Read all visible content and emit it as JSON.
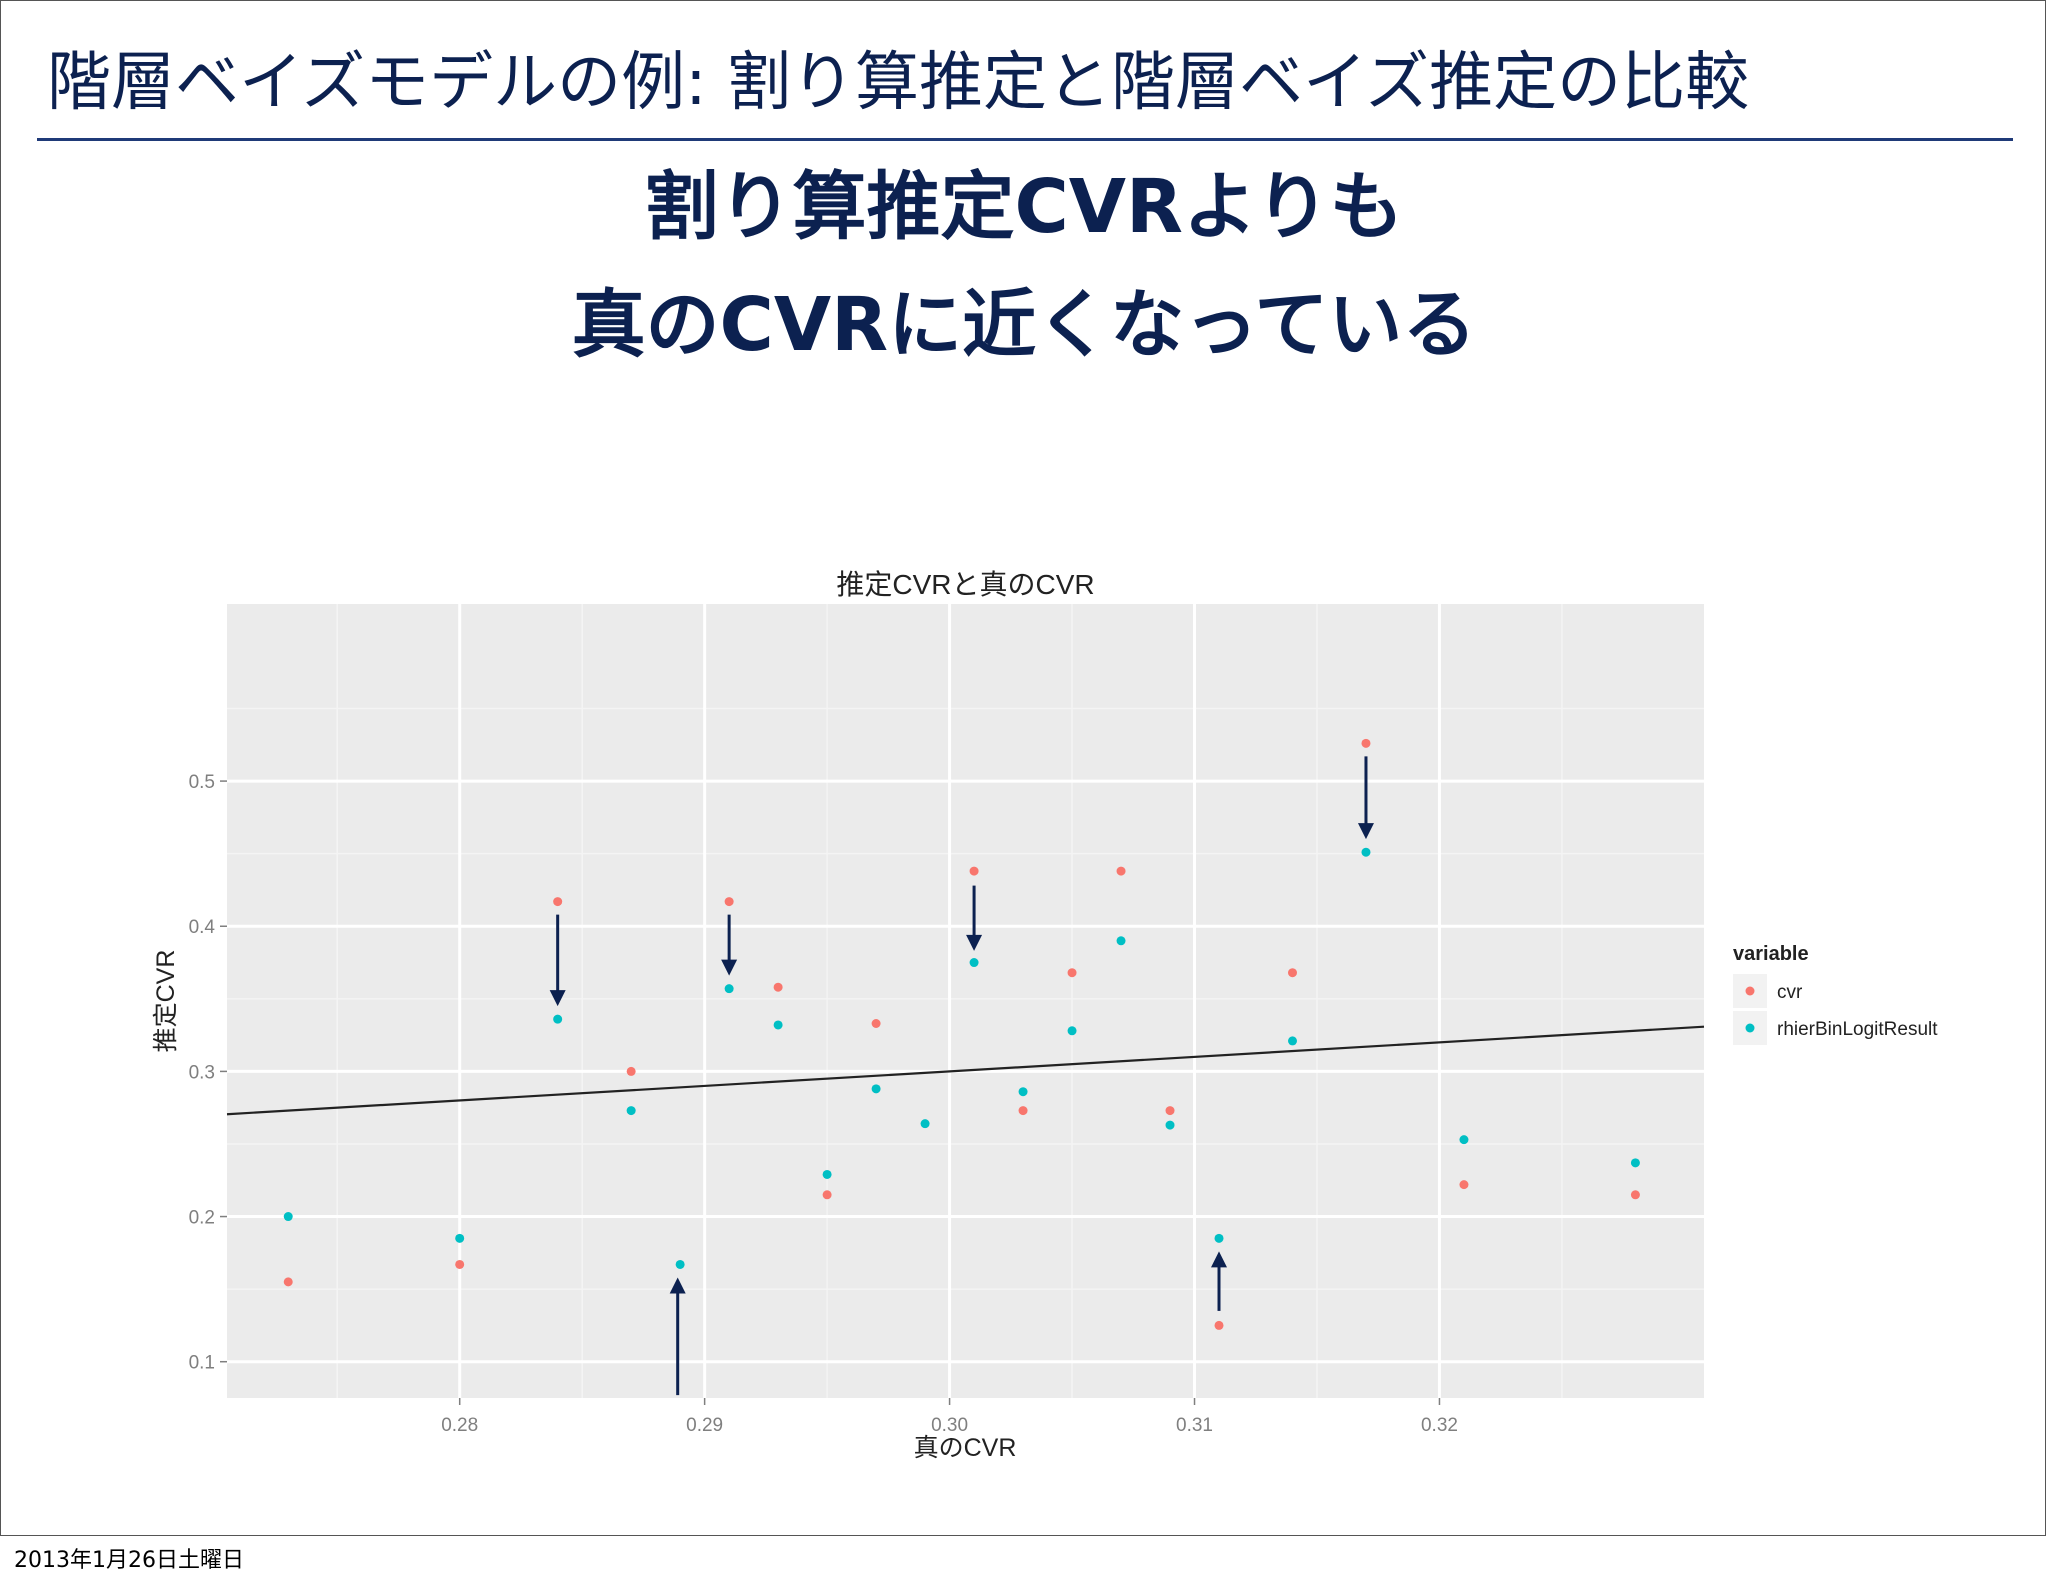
{
  "slide": {
    "title": "階層ベイズモデルの例: 割り算推定と階層ベイズ推定の比較",
    "headline_line1": "割り算推定CVRよりも",
    "headline_line2": "真のCVRに近くなっている",
    "footer_date": "2013年1月26日土曜日"
  },
  "chart_data": {
    "type": "scatter",
    "title": "推定CVRと真のCVR",
    "xlabel": "真のCVR",
    "ylabel": "推定CVR",
    "xlim": [
      0.2705,
      0.3308
    ],
    "ylim": [
      0.075,
      0.622
    ],
    "xticks": [
      0.28,
      0.29,
      0.3,
      0.31,
      0.32
    ],
    "xtick_labels": [
      "0.28",
      "0.29",
      "0.30",
      "0.31",
      "0.32"
    ],
    "yticks": [
      0.1,
      0.2,
      0.3,
      0.4,
      0.5
    ],
    "ytick_labels": [
      "0.1",
      "0.2",
      "0.3",
      "0.4",
      "0.5"
    ],
    "grid": true,
    "legend": {
      "title": "variable",
      "position": "right"
    },
    "series": [
      {
        "name": "cvr",
        "color": "#f8766d",
        "points": [
          [
            0.273,
            0.155
          ],
          [
            0.28,
            0.167
          ],
          [
            0.284,
            0.417
          ],
          [
            0.287,
            0.3
          ],
          [
            0.291,
            0.417
          ],
          [
            0.293,
            0.358
          ],
          [
            0.295,
            0.215
          ],
          [
            0.297,
            0.333
          ],
          [
            0.301,
            0.438
          ],
          [
            0.303,
            0.273
          ],
          [
            0.305,
            0.368
          ],
          [
            0.307,
            0.438
          ],
          [
            0.309,
            0.273
          ],
          [
            0.311,
            0.125
          ],
          [
            0.314,
            0.368
          ],
          [
            0.317,
            0.526
          ],
          [
            0.321,
            0.222
          ],
          [
            0.328,
            0.215
          ]
        ]
      },
      {
        "name": "rhierBinLogitResult",
        "color": "#00bfc4",
        "points": [
          [
            0.273,
            0.2
          ],
          [
            0.28,
            0.185
          ],
          [
            0.284,
            0.336
          ],
          [
            0.287,
            0.273
          ],
          [
            0.289,
            0.167
          ],
          [
            0.291,
            0.357
          ],
          [
            0.293,
            0.332
          ],
          [
            0.295,
            0.229
          ],
          [
            0.297,
            0.288
          ],
          [
            0.299,
            0.264
          ],
          [
            0.301,
            0.375
          ],
          [
            0.303,
            0.286
          ],
          [
            0.305,
            0.328
          ],
          [
            0.307,
            0.39
          ],
          [
            0.309,
            0.263
          ],
          [
            0.311,
            0.185
          ],
          [
            0.314,
            0.321
          ],
          [
            0.317,
            0.451
          ],
          [
            0.321,
            0.253
          ],
          [
            0.328,
            0.237
          ]
        ]
      }
    ],
    "reference_line": {
      "from": [
        0.2705,
        0.2705
      ],
      "to": [
        0.3308,
        0.3308
      ],
      "color": "#222222"
    },
    "annotations": {
      "arrow_color": "#0c2150",
      "arrows": [
        {
          "x": 0.284,
          "y_from": 0.408,
          "y_to": 0.345
        },
        {
          "x": 0.291,
          "y_from": 0.408,
          "y_to": 0.366
        },
        {
          "x": 0.301,
          "y_from": 0.428,
          "y_to": 0.383
        },
        {
          "x": 0.317,
          "y_from": 0.517,
          "y_to": 0.46
        },
        {
          "x": 0.311,
          "y_from": 0.135,
          "y_to": 0.176
        },
        {
          "x": 0.2889,
          "y_from": 0.077,
          "y_to": 0.158
        }
      ]
    }
  }
}
